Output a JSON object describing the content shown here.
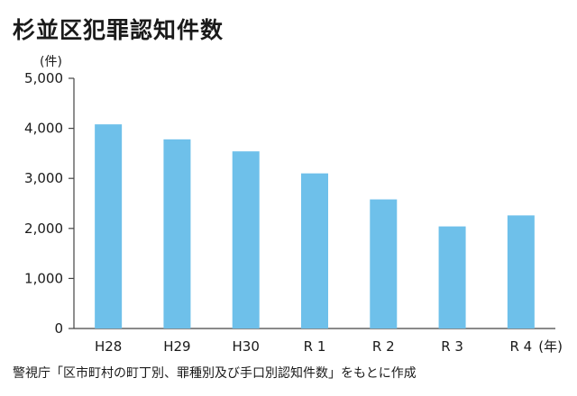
{
  "title": "杉並区犯罪認知件数",
  "source": "警視庁「区市町村の町丁別、罪種別及び手口別認知件数」をもとに作成",
  "chart_data": {
    "type": "bar",
    "categories": [
      "H28",
      "H29",
      "H30",
      "R 1",
      "R 2",
      "R 3",
      "R 4"
    ],
    "values": [
      4080,
      3780,
      3540,
      3100,
      2580,
      2040,
      2260
    ],
    "ylabel": "(件)",
    "xlabel": "(年)",
    "ylim": [
      0,
      5000
    ],
    "yticks": [
      0,
      1000,
      2000,
      3000,
      4000,
      5000
    ],
    "ytick_labels": [
      "0",
      "1,000",
      "2,000",
      "3,000",
      "4,000",
      "5,000"
    ],
    "grid": false,
    "legend": "none",
    "bar_color": "#6ec0ea",
    "axis_color": "#444444"
  }
}
